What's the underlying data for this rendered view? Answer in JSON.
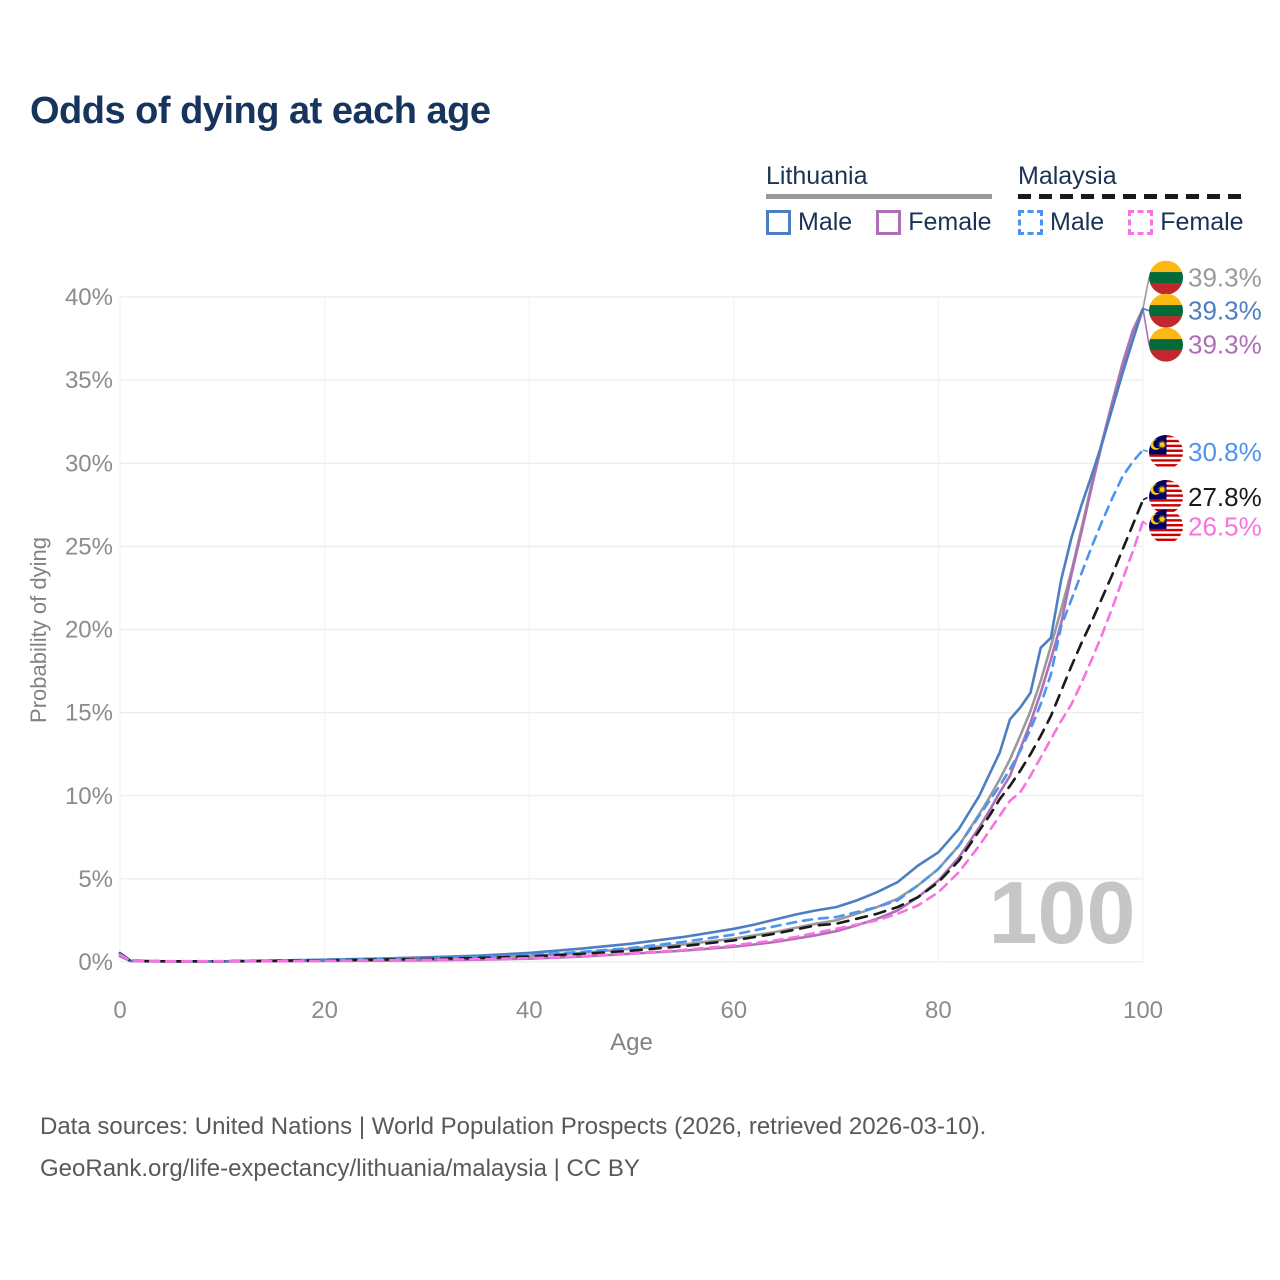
{
  "page": {
    "title": "Odds of dying at each age"
  },
  "legend": {
    "groups": [
      {
        "label": "Lithuania",
        "line_style": "solid",
        "line_color": "#9a9a9a",
        "items": [
          {
            "label": "Male",
            "swatch_color": "#4d7ec2",
            "swatch_style": "solid"
          },
          {
            "label": "Female",
            "swatch_color": "#af6fb8",
            "swatch_style": "solid"
          }
        ]
      },
      {
        "label": "Malaysia",
        "line_style": "dashed",
        "line_color": "#1a1a1a",
        "items": [
          {
            "label": "Male",
            "swatch_color": "#4d94f0",
            "swatch_style": "dashed"
          },
          {
            "label": "Female",
            "swatch_color": "#f973e0",
            "swatch_style": "dashed"
          }
        ]
      }
    ]
  },
  "chart_data": {
    "type": "line",
    "title": "Odds of dying at each age",
    "xlabel": "Age",
    "ylabel": "Probability of dying",
    "xlim": [
      0,
      100
    ],
    "ylim": [
      0,
      40
    ],
    "x_ticks": [
      0,
      20,
      40,
      60,
      80,
      100
    ],
    "y_ticks": [
      0,
      5,
      10,
      15,
      20,
      25,
      30,
      35,
      40
    ],
    "y_tick_suffix": "%",
    "grid": true,
    "legend_position": "top-right",
    "watermark": "100",
    "ages": [
      0,
      1,
      2,
      5,
      10,
      15,
      20,
      25,
      30,
      35,
      40,
      45,
      50,
      55,
      60,
      62,
      64,
      66,
      68,
      70,
      72,
      74,
      76,
      78,
      80,
      82,
      84,
      85,
      86,
      87,
      88,
      89,
      90,
      91,
      92,
      93,
      94,
      95,
      96,
      97,
      98,
      99,
      100
    ],
    "series": [
      {
        "name": "Lithuania both sexes",
        "country": "Lithuania",
        "flag": "lt",
        "color": "#9a9a9a",
        "dash": "solid",
        "end_label": "39.3%",
        "values": [
          0.4,
          0.07,
          0.05,
          0.035,
          0.035,
          0.06,
          0.1,
          0.14,
          0.19,
          0.26,
          0.37,
          0.55,
          0.8,
          1.05,
          1.4,
          1.6,
          1.8,
          2.05,
          2.3,
          2.5,
          2.9,
          3.3,
          3.8,
          4.6,
          5.6,
          7.0,
          8.9,
          9.9,
          11.0,
          12.2,
          13.6,
          15.1,
          16.9,
          19.0,
          21.2,
          23.5,
          26.1,
          28.8,
          31.3,
          33.7,
          36.0,
          38.0,
          39.3
        ]
      },
      {
        "name": "Lithuania female",
        "country": "Lithuania",
        "flag": "lt",
        "color": "#af6fb8",
        "dash": "solid",
        "end_label": "39.3%",
        "values": [
          0.35,
          0.06,
          0.04,
          0.03,
          0.03,
          0.04,
          0.06,
          0.08,
          0.1,
          0.14,
          0.2,
          0.32,
          0.5,
          0.68,
          0.92,
          1.05,
          1.2,
          1.4,
          1.6,
          1.85,
          2.2,
          2.6,
          3.1,
          3.9,
          4.9,
          6.3,
          8.1,
          9.1,
          10.2,
          11.2,
          12.8,
          14.4,
          16.2,
          18.2,
          20.4,
          23.3,
          25.9,
          28.6,
          31.2,
          33.6,
          35.9,
          37.9,
          39.3
        ]
      },
      {
        "name": "Lithuania male",
        "country": "Lithuania",
        "flag": "lt",
        "color": "#4d7ec2",
        "dash": "solid",
        "end_label": "39.3%",
        "values": [
          0.45,
          0.08,
          0.05,
          0.04,
          0.04,
          0.08,
          0.14,
          0.2,
          0.28,
          0.38,
          0.55,
          0.8,
          1.1,
          1.5,
          2.0,
          2.25,
          2.55,
          2.85,
          3.1,
          3.3,
          3.7,
          4.2,
          4.8,
          5.8,
          6.6,
          8.0,
          10.0,
          11.3,
          12.6,
          14.6,
          15.3,
          16.2,
          18.9,
          19.5,
          23.0,
          25.5,
          27.5,
          29.3,
          31.2,
          33.3,
          35.4,
          37.4,
          39.3
        ]
      },
      {
        "name": "Malaysia male",
        "country": "Malaysia",
        "flag": "my",
        "color": "#4d94f0",
        "dash": "dashed",
        "end_label": "30.8%",
        "values": [
          0.55,
          0.1,
          0.07,
          0.05,
          0.05,
          0.09,
          0.13,
          0.17,
          0.22,
          0.3,
          0.42,
          0.6,
          0.85,
          1.2,
          1.65,
          1.9,
          2.15,
          2.4,
          2.6,
          2.7,
          3.0,
          3.3,
          3.7,
          4.6,
          5.6,
          7.0,
          8.8,
          9.7,
          10.6,
          11.6,
          12.7,
          14.0,
          15.5,
          17.3,
          20.2,
          21.8,
          23.4,
          25.0,
          26.5,
          27.9,
          29.2,
          30.1,
          30.8
        ]
      },
      {
        "name": "Malaysia both sexes",
        "country": "Malaysia",
        "flag": "my",
        "color": "#1a1a1a",
        "dash": "dashed",
        "end_label": "27.8%",
        "values": [
          0.5,
          0.09,
          0.06,
          0.045,
          0.045,
          0.07,
          0.11,
          0.14,
          0.18,
          0.24,
          0.33,
          0.48,
          0.68,
          0.95,
          1.3,
          1.5,
          1.7,
          1.95,
          2.2,
          2.3,
          2.6,
          2.9,
          3.3,
          3.9,
          4.8,
          6.1,
          7.9,
          8.8,
          9.8,
          10.6,
          11.5,
          12.5,
          13.6,
          14.8,
          16.3,
          17.8,
          19.2,
          20.5,
          21.9,
          23.3,
          24.8,
          26.3,
          27.8
        ]
      },
      {
        "name": "Malaysia female",
        "country": "Malaysia",
        "flag": "my",
        "color": "#f973e0",
        "dash": "dashed",
        "end_label": "26.5%",
        "values": [
          0.45,
          0.08,
          0.05,
          0.04,
          0.04,
          0.05,
          0.08,
          0.1,
          0.13,
          0.17,
          0.23,
          0.35,
          0.52,
          0.72,
          1.0,
          1.15,
          1.3,
          1.5,
          1.75,
          2.0,
          2.25,
          2.5,
          2.9,
          3.4,
          4.2,
          5.4,
          7.0,
          7.9,
          8.8,
          9.7,
          10.2,
          11.2,
          12.3,
          13.4,
          14.5,
          15.5,
          16.8,
          18.2,
          19.7,
          21.3,
          23.0,
          24.7,
          26.5
        ]
      }
    ]
  },
  "footer": {
    "line1": "Data sources: United Nations | World Population Prospects (2026, retrieved 2026-03-10).",
    "line2": "GeoRank.org/life-expectancy/lithuania/malaysia | CC BY"
  }
}
